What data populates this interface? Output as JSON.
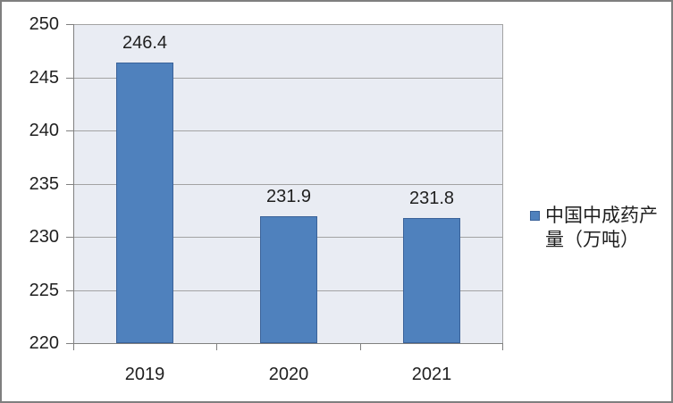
{
  "chart_data": {
    "type": "bar",
    "categories": [
      "2019",
      "2020",
      "2021"
    ],
    "series": [
      {
        "name": "中国中成药产量（万吨）",
        "values": [
          246.4,
          231.9,
          231.8
        ]
      }
    ],
    "data_labels": [
      "246.4",
      "231.9",
      "231.8"
    ],
    "title": "",
    "xlabel": "",
    "ylabel": "",
    "ylim": [
      220,
      250
    ],
    "ytick_step": 5,
    "ytick_labels": [
      "220",
      "225",
      "230",
      "235",
      "240",
      "245",
      "250"
    ],
    "grid": true,
    "legend_position": "right",
    "colors": {
      "bar_fill": "#4F81BD",
      "bar_border": "#3A6299",
      "plot_bg": "#E9ECF3",
      "gridline": "#A3A3A3",
      "axis": "#808080",
      "text": "#1F1F1F",
      "chart_border": "#7F7F7F",
      "background": "#FFFFFF"
    }
  },
  "legend": {
    "label": "中国中成药产量（万吨）",
    "lines": [
      "中国中成药产",
      "量（万吨）"
    ],
    "marker": "blue-square-icon"
  }
}
